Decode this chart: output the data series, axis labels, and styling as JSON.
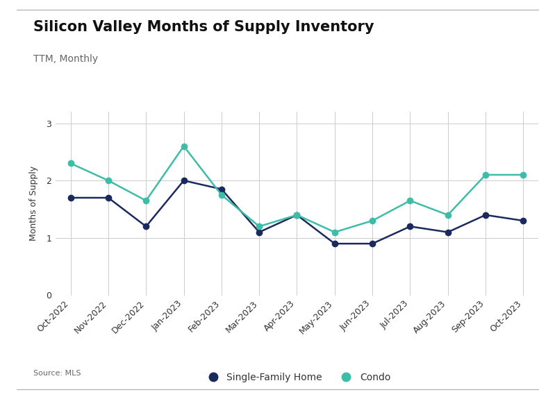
{
  "title": "Silicon Valley Months of Supply Inventory",
  "subtitle": "TTM, Monthly",
  "source": "Source: MLS",
  "ylabel": "Months of Supply",
  "categories": [
    "Oct-2022",
    "Nov-2022",
    "Dec-2022",
    "Jan-2023",
    "Feb-2023",
    "Mar-2023",
    "Apr-2023",
    "May-2023",
    "Jun-2023",
    "Jul-2023",
    "Aug-2023",
    "Sep-2023",
    "Oct-2023"
  ],
  "sfh_values": [
    1.7,
    1.7,
    1.2,
    2.0,
    1.85,
    1.1,
    1.4,
    0.9,
    0.9,
    1.2,
    1.1,
    1.4,
    1.3
  ],
  "condo_values": [
    2.3,
    2.0,
    1.65,
    2.6,
    1.75,
    1.2,
    1.4,
    1.1,
    1.3,
    1.65,
    1.4,
    2.1,
    2.1
  ],
  "sfh_color": "#1b2a5e",
  "condo_color": "#3dbda7",
  "ylim": [
    0,
    3.2
  ],
  "yticks": [
    0,
    1,
    2,
    3
  ],
  "background_color": "#ffffff",
  "grid_color": "#cccccc",
  "title_fontsize": 15,
  "subtitle_fontsize": 10,
  "source_fontsize": 8,
  "ylabel_fontsize": 9,
  "tick_fontsize": 9,
  "legend_fontsize": 10,
  "legend_labels": [
    "Single-Family Home",
    "Condo"
  ],
  "marker_size": 6,
  "line_width": 1.8
}
